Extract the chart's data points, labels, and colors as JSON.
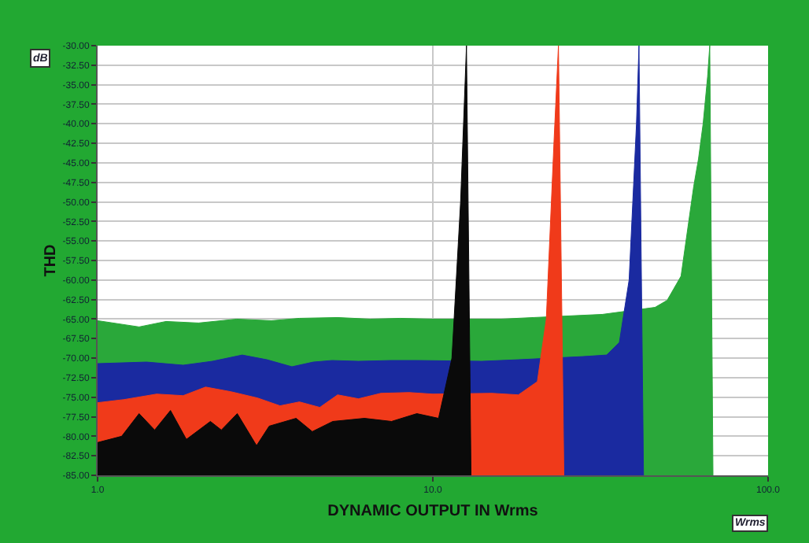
{
  "chart_data": {
    "type": "area",
    "xlabel": "DYNAMIC OUTPUT IN Wrms",
    "ylabel": "THD",
    "annotations": [
      "dB",
      "Wrms"
    ],
    "log": "x",
    "grid": true,
    "xlim": [
      1,
      100
    ],
    "xticks": [
      {
        "value": 1,
        "label": "1.0"
      },
      {
        "value": 10,
        "label": "10.0"
      },
      {
        "value": 100,
        "label": "100.0"
      }
    ],
    "ylim": [
      -85,
      -30
    ],
    "yticks": [
      {
        "value": -30,
        "label": "-30.00"
      },
      {
        "value": -32.5,
        "label": "-32.50"
      },
      {
        "value": -35,
        "label": "-35.00"
      },
      {
        "value": -37.5,
        "label": "-37.50"
      },
      {
        "value": -40,
        "label": "-40.00"
      },
      {
        "value": -42.5,
        "label": "-42.50"
      },
      {
        "value": -45,
        "label": "-45.00"
      },
      {
        "value": -47.5,
        "label": "-47.50"
      },
      {
        "value": -50,
        "label": "-50.00"
      },
      {
        "value": -52.5,
        "label": "-52.50"
      },
      {
        "value": -55,
        "label": "-55.00"
      },
      {
        "value": -57.5,
        "label": "-57.50"
      },
      {
        "value": -60,
        "label": "-60.00"
      },
      {
        "value": -62.5,
        "label": "-62.50"
      },
      {
        "value": -65,
        "label": "-65.00"
      },
      {
        "value": -67.5,
        "label": "-67.50"
      },
      {
        "value": -70,
        "label": "-70.00"
      },
      {
        "value": -72.5,
        "label": "-72.50"
      },
      {
        "value": -75,
        "label": "-75.00"
      },
      {
        "value": -77.5,
        "label": "-77.50"
      },
      {
        "value": -80,
        "label": "-80.00"
      },
      {
        "value": -82.5,
        "label": "-82.50"
      },
      {
        "value": -85,
        "label": "-85.00"
      }
    ],
    "series": [
      {
        "color": "#2aa83a",
        "x": [
          1,
          1.33,
          1.6,
          2,
          2.6,
          3.3,
          4,
          5.2,
          6.5,
          8,
          10,
          16,
          20,
          32,
          46,
          50,
          55,
          60,
          62,
          64,
          66,
          67,
          68.5
        ],
        "values": [
          -65.2,
          -66,
          -65.3,
          -65.5,
          -65,
          -65.2,
          -64.9,
          -64.8,
          -65,
          -64.9,
          -65,
          -65,
          -64.8,
          -64.4,
          -63.5,
          -62.6,
          -59.5,
          -48,
          -44.5,
          -40,
          -34,
          -30,
          -85
        ]
      },
      {
        "color": "#1a2aa0",
        "x": [
          1,
          1.4,
          1.8,
          2.2,
          2.7,
          3.2,
          3.8,
          4.4,
          5,
          6,
          7.5,
          9,
          14,
          18,
          28,
          33,
          36,
          38.5,
          40.5,
          41.2,
          42.5
        ],
        "values": [
          -70.7,
          -70.5,
          -70.9,
          -70.4,
          -69.6,
          -70.2,
          -71.1,
          -70.5,
          -70.3,
          -70.4,
          -70.3,
          -70.3,
          -70.4,
          -70.2,
          -69.8,
          -69.6,
          -68,
          -60,
          -40,
          -30,
          -85
        ]
      },
      {
        "color": "#f03a1a",
        "x": [
          1,
          1.2,
          1.5,
          1.8,
          2.1,
          2.5,
          3,
          3.5,
          4,
          4.6,
          5.2,
          6,
          7,
          8.5,
          10,
          15,
          18,
          20.5,
          21.8,
          23,
          23.7,
          24.6
        ],
        "values": [
          -75.7,
          -75.3,
          -74.6,
          -74.8,
          -73.7,
          -74.3,
          -75.1,
          -76.1,
          -75.6,
          -76.3,
          -74.7,
          -75.2,
          -74.5,
          -74.4,
          -74.6,
          -74.5,
          -74.7,
          -73,
          -65,
          -42,
          -30,
          -85
        ]
      },
      {
        "color": "#0a0a0a",
        "x": [
          1,
          1.18,
          1.33,
          1.48,
          1.65,
          1.84,
          2.17,
          2.34,
          2.61,
          2.98,
          3.25,
          3.91,
          4.37,
          5.03,
          6.25,
          7.53,
          8.96,
          10.4,
          11.4,
          12.1,
          12.6,
          13
        ],
        "values": [
          -80.8,
          -80,
          -77.1,
          -79.2,
          -76.7,
          -80.4,
          -78.1,
          -79.2,
          -77.1,
          -81.2,
          -78.7,
          -77.7,
          -79.4,
          -78.1,
          -77.7,
          -78.1,
          -77.1,
          -77.7,
          -70,
          -50,
          -30,
          -85
        ]
      }
    ]
  }
}
